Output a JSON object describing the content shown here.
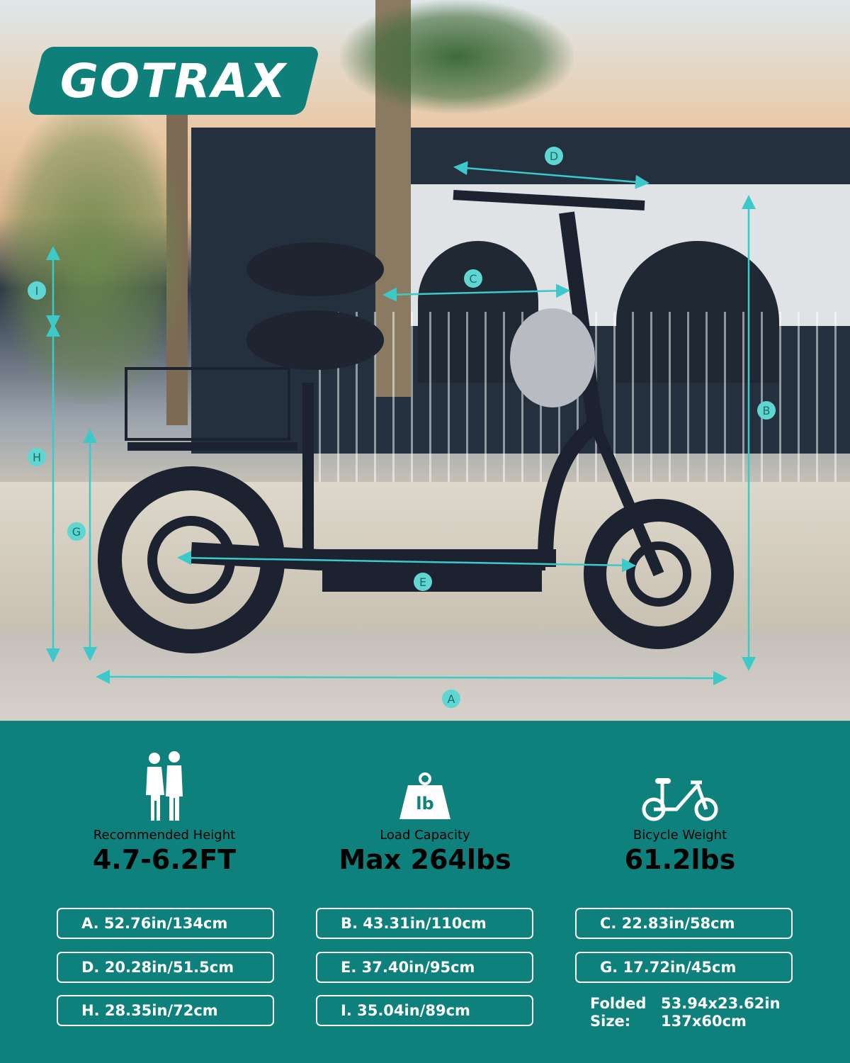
{
  "brand": {
    "logo_text": "GOTRAX",
    "accent": "#0e817c",
    "dimension_line_color": "#3cc9c9"
  },
  "dimension_labels": [
    "A",
    "B",
    "C",
    "D",
    "E",
    "G",
    "H",
    "I"
  ],
  "stats": [
    {
      "icon": "couple-icon",
      "label": "Recommended Height",
      "value": "4.7-6.2FT"
    },
    {
      "icon": "weight-icon",
      "icon_text": "lb",
      "label": "Load Capacity",
      "value": "Max 264lbs"
    },
    {
      "icon": "bicycle-icon",
      "label": "Bicycle Weight",
      "value": "61.2lbs"
    }
  ],
  "dimensions": [
    "A. 52.76in/134cm",
    "B. 43.31in/110cm",
    "C. 22.83in/58cm",
    "D. 20.28in/51.5cm",
    "E. 37.40in/95cm",
    "G. 17.72in/45cm",
    "H. 28.35in/72cm",
    "I. 35.04in/89cm"
  ],
  "folded": {
    "label_1": "Folded",
    "label_2": "Size:",
    "in": "53.94x23.62in",
    "cm": "137x60cm"
  }
}
